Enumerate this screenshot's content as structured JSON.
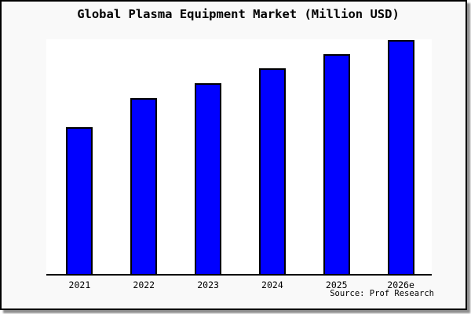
{
  "figure": {
    "background_color": "#f9f9f9",
    "plot_background_color": "#ffffff",
    "frame_border_color": "#000000",
    "shadow_color": "#8f8f8f",
    "text_color": "#000000"
  },
  "source_credit": "Source: Prof Research",
  "chart_data": {
    "type": "bar",
    "title": "Global Plasma Equipment Market (Million USD)",
    "categories": [
      "2021",
      "2022",
      "2023",
      "2024",
      "2025",
      "2026e"
    ],
    "values": [
      188,
      225,
      244,
      263,
      281,
      299
    ],
    "values_note": "relative units estimated from bar heights; chart shows no y-axis scale, gridlines or data labels",
    "xlabel": "",
    "ylabel": "",
    "ylim": [
      0,
      300
    ],
    "grid": false,
    "legend": false,
    "y_axis_visible": false,
    "bar_color": "#0000ff",
    "bar_border_color": "#000000",
    "axis_color": "#000000"
  }
}
